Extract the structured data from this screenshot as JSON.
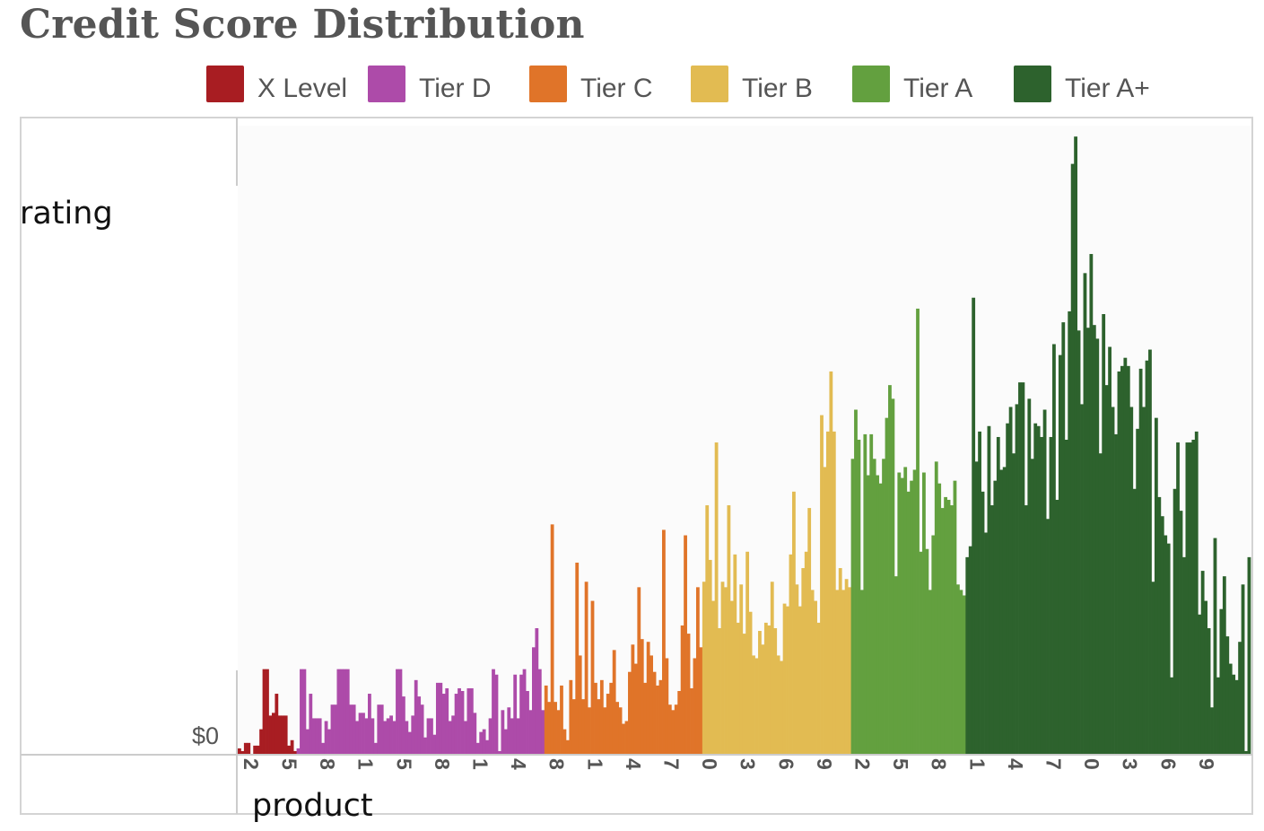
{
  "chart_data": {
    "type": "bar",
    "title": "Credit Score Distribution",
    "xlabel": "product",
    "ylabel": "rating",
    "y_tick_labels": [
      "$0"
    ],
    "x_tick_labels": [
      "2",
      "5",
      "8",
      "1",
      "5",
      "8",
      "1",
      "4",
      "8",
      "1",
      "4",
      "7",
      "0",
      "3",
      "6",
      "9",
      "2",
      "5",
      "8",
      "1",
      "4",
      "7",
      "0",
      "3",
      "6",
      "9"
    ],
    "ylim": [
      0,
      230
    ],
    "grid": false,
    "legend_position": "top",
    "series": [
      {
        "name": "X Level",
        "color": "#a81d22",
        "values": [
          2,
          1,
          4,
          4,
          0,
          3,
          3,
          9,
          31,
          31,
          14,
          15,
          22,
          14,
          14,
          14,
          3,
          5,
          1
        ]
      },
      {
        "name": "Tier D",
        "color": "#ad4ba9",
        "values": [
          2,
          31,
          31,
          9,
          22,
          13,
          13,
          13,
          4,
          12,
          9,
          18,
          18,
          31,
          31,
          31,
          31,
          18,
          18,
          12,
          15,
          15,
          13,
          22,
          13,
          4,
          18,
          18,
          12,
          13,
          14,
          12,
          31,
          31,
          21,
          12,
          8,
          14,
          27,
          21,
          18,
          6,
          13,
          13,
          7,
          26,
          26,
          22,
          24,
          12,
          14,
          22,
          24,
          23,
          12,
          24,
          24,
          15,
          4,
          8,
          9,
          5,
          13,
          31,
          29,
          1,
          16,
          9,
          17,
          13,
          29,
          13,
          29,
          31,
          23,
          16,
          39,
          46,
          31,
          16
        ]
      },
      {
        "name": "Tier C",
        "color": "#e07429",
        "values": [
          25,
          19,
          84,
          19,
          16,
          25,
          9,
          5,
          27,
          20,
          70,
          36,
          20,
          63,
          17,
          56,
          26,
          20,
          27,
          17,
          22,
          26,
          38,
          19,
          17,
          11,
          12,
          30,
          40,
          33,
          61,
          42,
          26,
          41,
          36,
          30,
          25,
          27,
          82,
          35,
          18,
          16,
          18,
          23,
          47,
          80,
          44,
          24,
          35,
          61,
          39
        ]
      },
      {
        "name": "Tier B",
        "color": "#e2bb52",
        "values": [
          63,
          91,
          71,
          56,
          114,
          46,
          63,
          61,
          91,
          56,
          73,
          48,
          62,
          44,
          74,
          52,
          36,
          35,
          45,
          40,
          48,
          47,
          63,
          46,
          36,
          34,
          55,
          54,
          73,
          96,
          62,
          54,
          68,
          74,
          90,
          60,
          56,
          48,
          124,
          105,
          118,
          140,
          118,
          60,
          68,
          60,
          64,
          61
        ]
      },
      {
        "name": "Tier A",
        "color": "#63a03f",
        "values": [
          108,
          126,
          115,
          60,
          117,
          102,
          117,
          108,
          102,
          99,
          108,
          123,
          135,
          130,
          65,
          103,
          101,
          105,
          96,
          100,
          104,
          163,
          74,
          103,
          75,
          60,
          80,
          107,
          99,
          90,
          94,
          93,
          91,
          100,
          62,
          60,
          58
        ]
      },
      {
        "name": "Tier A+",
        "color": "#2d622d",
        "values": [
          72,
          76,
          167,
          107,
          118,
          96,
          81,
          120,
          91,
          100,
          116,
          104,
          105,
          121,
          127,
          110,
          128,
          136,
          136,
          91,
          130,
          108,
          121,
          120,
          116,
          126,
          86,
          116,
          150,
          93,
          146,
          158,
          115,
          162,
          216,
          226,
          155,
          128,
          176,
          156,
          183,
          157,
          152,
          110,
          161,
          135,
          149,
          127,
          117,
          140,
          142,
          145,
          142,
          127,
          97,
          119,
          141,
          127,
          144,
          148,
          63,
          123,
          94,
          87,
          80,
          77,
          28,
          97,
          114,
          89,
          72,
          114,
          114,
          115,
          118,
          51,
          67,
          56,
          46,
          17,
          79,
          28,
          53,
          65,
          43,
          33,
          29,
          27,
          41,
          62,
          1,
          72
        ]
      }
    ]
  }
}
